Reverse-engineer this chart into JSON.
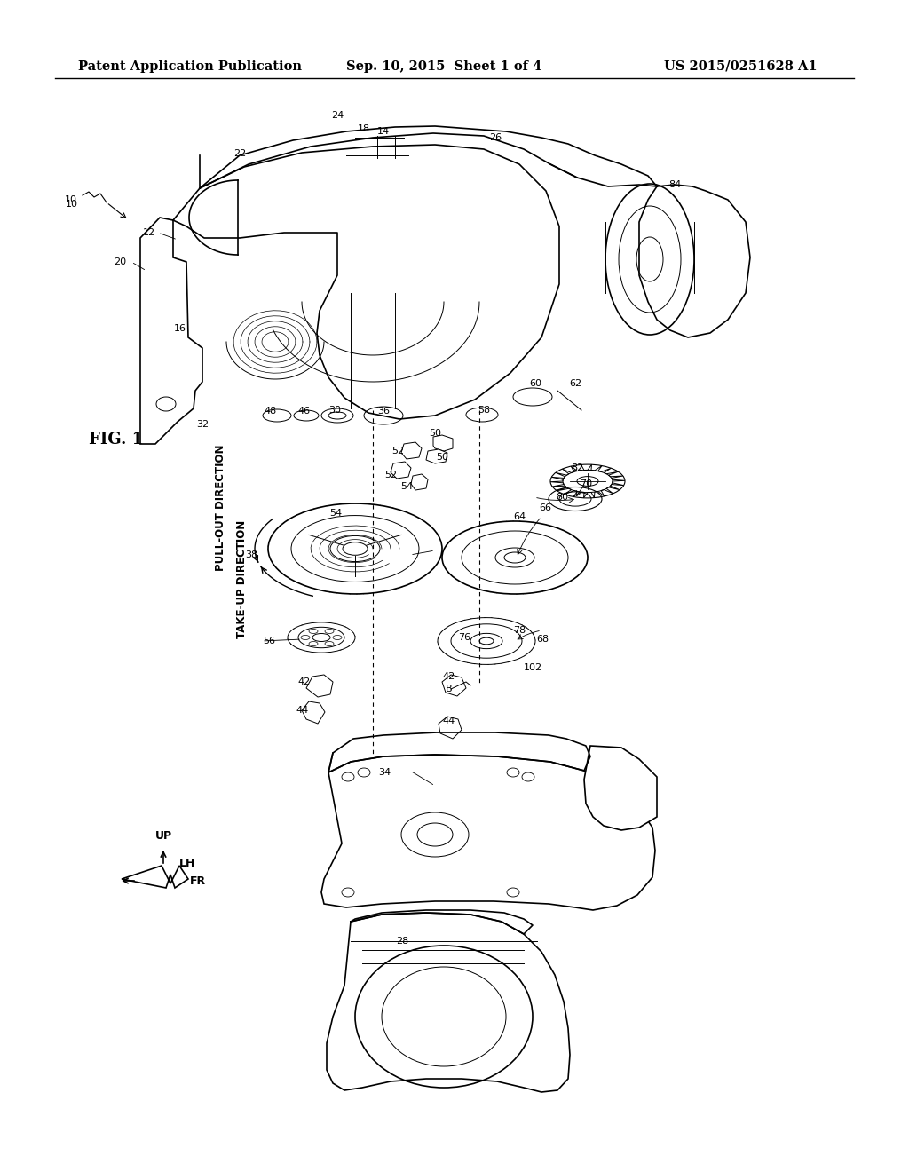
{
  "header_left": "Patent Application Publication",
  "header_center": "Sep. 10, 2015  Sheet 1 of 4",
  "header_right": "US 2015/0251628 A1",
  "figure_label": "FIG. 1",
  "bg": "#ffffff",
  "lc": "#000000",
  "direction_labels": [
    "PULL-OUT DIRECTION",
    "TAKE-UP DIRECTION"
  ],
  "compass_labels": [
    "LH",
    "FR",
    "UP"
  ],
  "ref_numbers": [
    [
      "10",
      88,
      230,
      "right"
    ],
    [
      "12",
      175,
      262,
      "right"
    ],
    [
      "14",
      432,
      148,
      "center"
    ],
    [
      "16",
      210,
      370,
      "right"
    ],
    [
      "18",
      410,
      145,
      "center"
    ],
    [
      "20",
      142,
      295,
      "right"
    ],
    [
      "22",
      270,
      173,
      "center"
    ],
    [
      "24",
      380,
      130,
      "center"
    ],
    [
      "26",
      558,
      155,
      "center"
    ],
    [
      "28",
      460,
      1060,
      "right"
    ],
    [
      "30",
      377,
      462,
      "center"
    ],
    [
      "32",
      228,
      478,
      "center"
    ],
    [
      "34",
      440,
      870,
      "right"
    ],
    [
      "36",
      432,
      463,
      "center"
    ],
    [
      "38",
      290,
      625,
      "right"
    ],
    [
      "42",
      350,
      768,
      "right"
    ],
    [
      "42",
      498,
      762,
      "left"
    ],
    [
      "44",
      348,
      800,
      "right"
    ],
    [
      "44",
      498,
      812,
      "left"
    ],
    [
      "46",
      342,
      463,
      "center"
    ],
    [
      "48",
      305,
      463,
      "center"
    ],
    [
      "50",
      490,
      488,
      "center"
    ],
    [
      "50",
      498,
      515,
      "center"
    ],
    [
      "52",
      448,
      508,
      "center"
    ],
    [
      "52",
      440,
      535,
      "center"
    ],
    [
      "54",
      458,
      548,
      "center"
    ],
    [
      "54",
      378,
      578,
      "center"
    ],
    [
      "56",
      310,
      722,
      "right"
    ],
    [
      "58",
      545,
      462,
      "center"
    ],
    [
      "60",
      603,
      432,
      "center"
    ],
    [
      "62",
      648,
      432,
      "center"
    ],
    [
      "64",
      592,
      582,
      "right"
    ],
    [
      "66",
      607,
      572,
      "left"
    ],
    [
      "68",
      618,
      720,
      "right"
    ],
    [
      "70",
      667,
      545,
      "right"
    ],
    [
      "76",
      516,
      718,
      "left"
    ],
    [
      "78",
      592,
      710,
      "right"
    ],
    [
      "80",
      640,
      560,
      "right"
    ],
    [
      "82",
      658,
      527,
      "right"
    ],
    [
      "84",
      760,
      208,
      "center"
    ],
    [
      "102",
      590,
      752,
      "left"
    ],
    [
      "B",
      502,
      776,
      "left"
    ]
  ]
}
